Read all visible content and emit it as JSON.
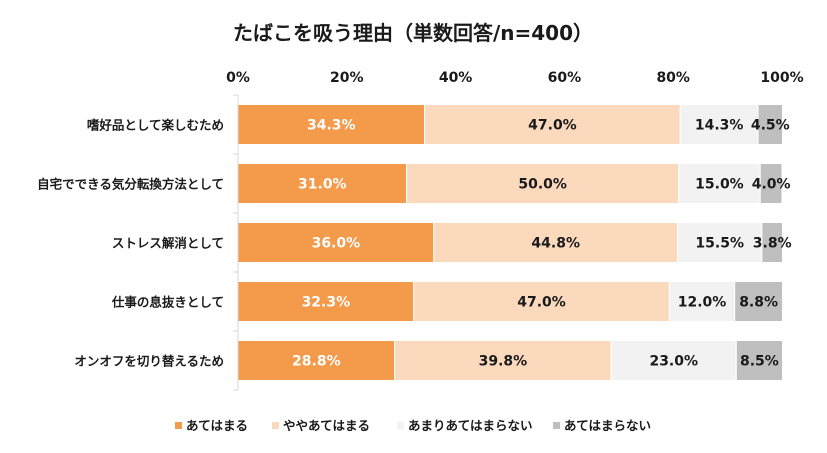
{
  "chart_data": {
    "type": "bar",
    "orientation": "horizontal-stacked-100",
    "title": "たばこを吸う理由（単数回答/n=400）",
    "xlabel": "",
    "ylabel": "",
    "xlim": [
      0,
      100
    ],
    "ticks": [
      "0%",
      "20%",
      "40%",
      "60%",
      "80%",
      "100%"
    ],
    "tick_values": [
      0,
      20,
      40,
      60,
      80,
      100
    ],
    "categories": [
      "嗜好品として楽しむため",
      "自宅でできる気分転換方法として",
      "ストレス解消として",
      "仕事の息抜きとして",
      "オンオフを切り替えるため"
    ],
    "series": [
      {
        "name": "あてはまる",
        "color": "#F39A4B",
        "label_color": "#ffffff",
        "values": [
          34.3,
          31.0,
          36.0,
          32.3,
          28.8
        ],
        "labels": [
          "34.3%",
          "31.0%",
          "36.0%",
          "32.3%",
          "28.8%"
        ]
      },
      {
        "name": "ややあてはまる",
        "color": "#FBD9BD",
        "label_color": "#1a1a1a",
        "values": [
          47.0,
          50.0,
          44.8,
          47.0,
          39.8
        ],
        "labels": [
          "47.0%",
          "50.0%",
          "44.8%",
          "47.0%",
          "39.8%"
        ]
      },
      {
        "name": "あまりあてはまらない",
        "color": "#F2F2F2",
        "label_color": "#1a1a1a",
        "values": [
          14.3,
          15.0,
          15.5,
          12.0,
          23.0
        ],
        "labels": [
          "14.3%",
          "15.0%",
          "15.5%",
          "12.0%",
          "23.0%"
        ]
      },
      {
        "name": "あてはまらない",
        "color": "#BFBFBF",
        "label_color": "#1a1a1a",
        "values": [
          4.5,
          4.0,
          3.8,
          8.8,
          8.5
        ],
        "labels": [
          "4.5%",
          "4.0%",
          "3.8%",
          "8.8%",
          "8.5%"
        ]
      }
    ],
    "legend": "bottom",
    "grid": false
  }
}
